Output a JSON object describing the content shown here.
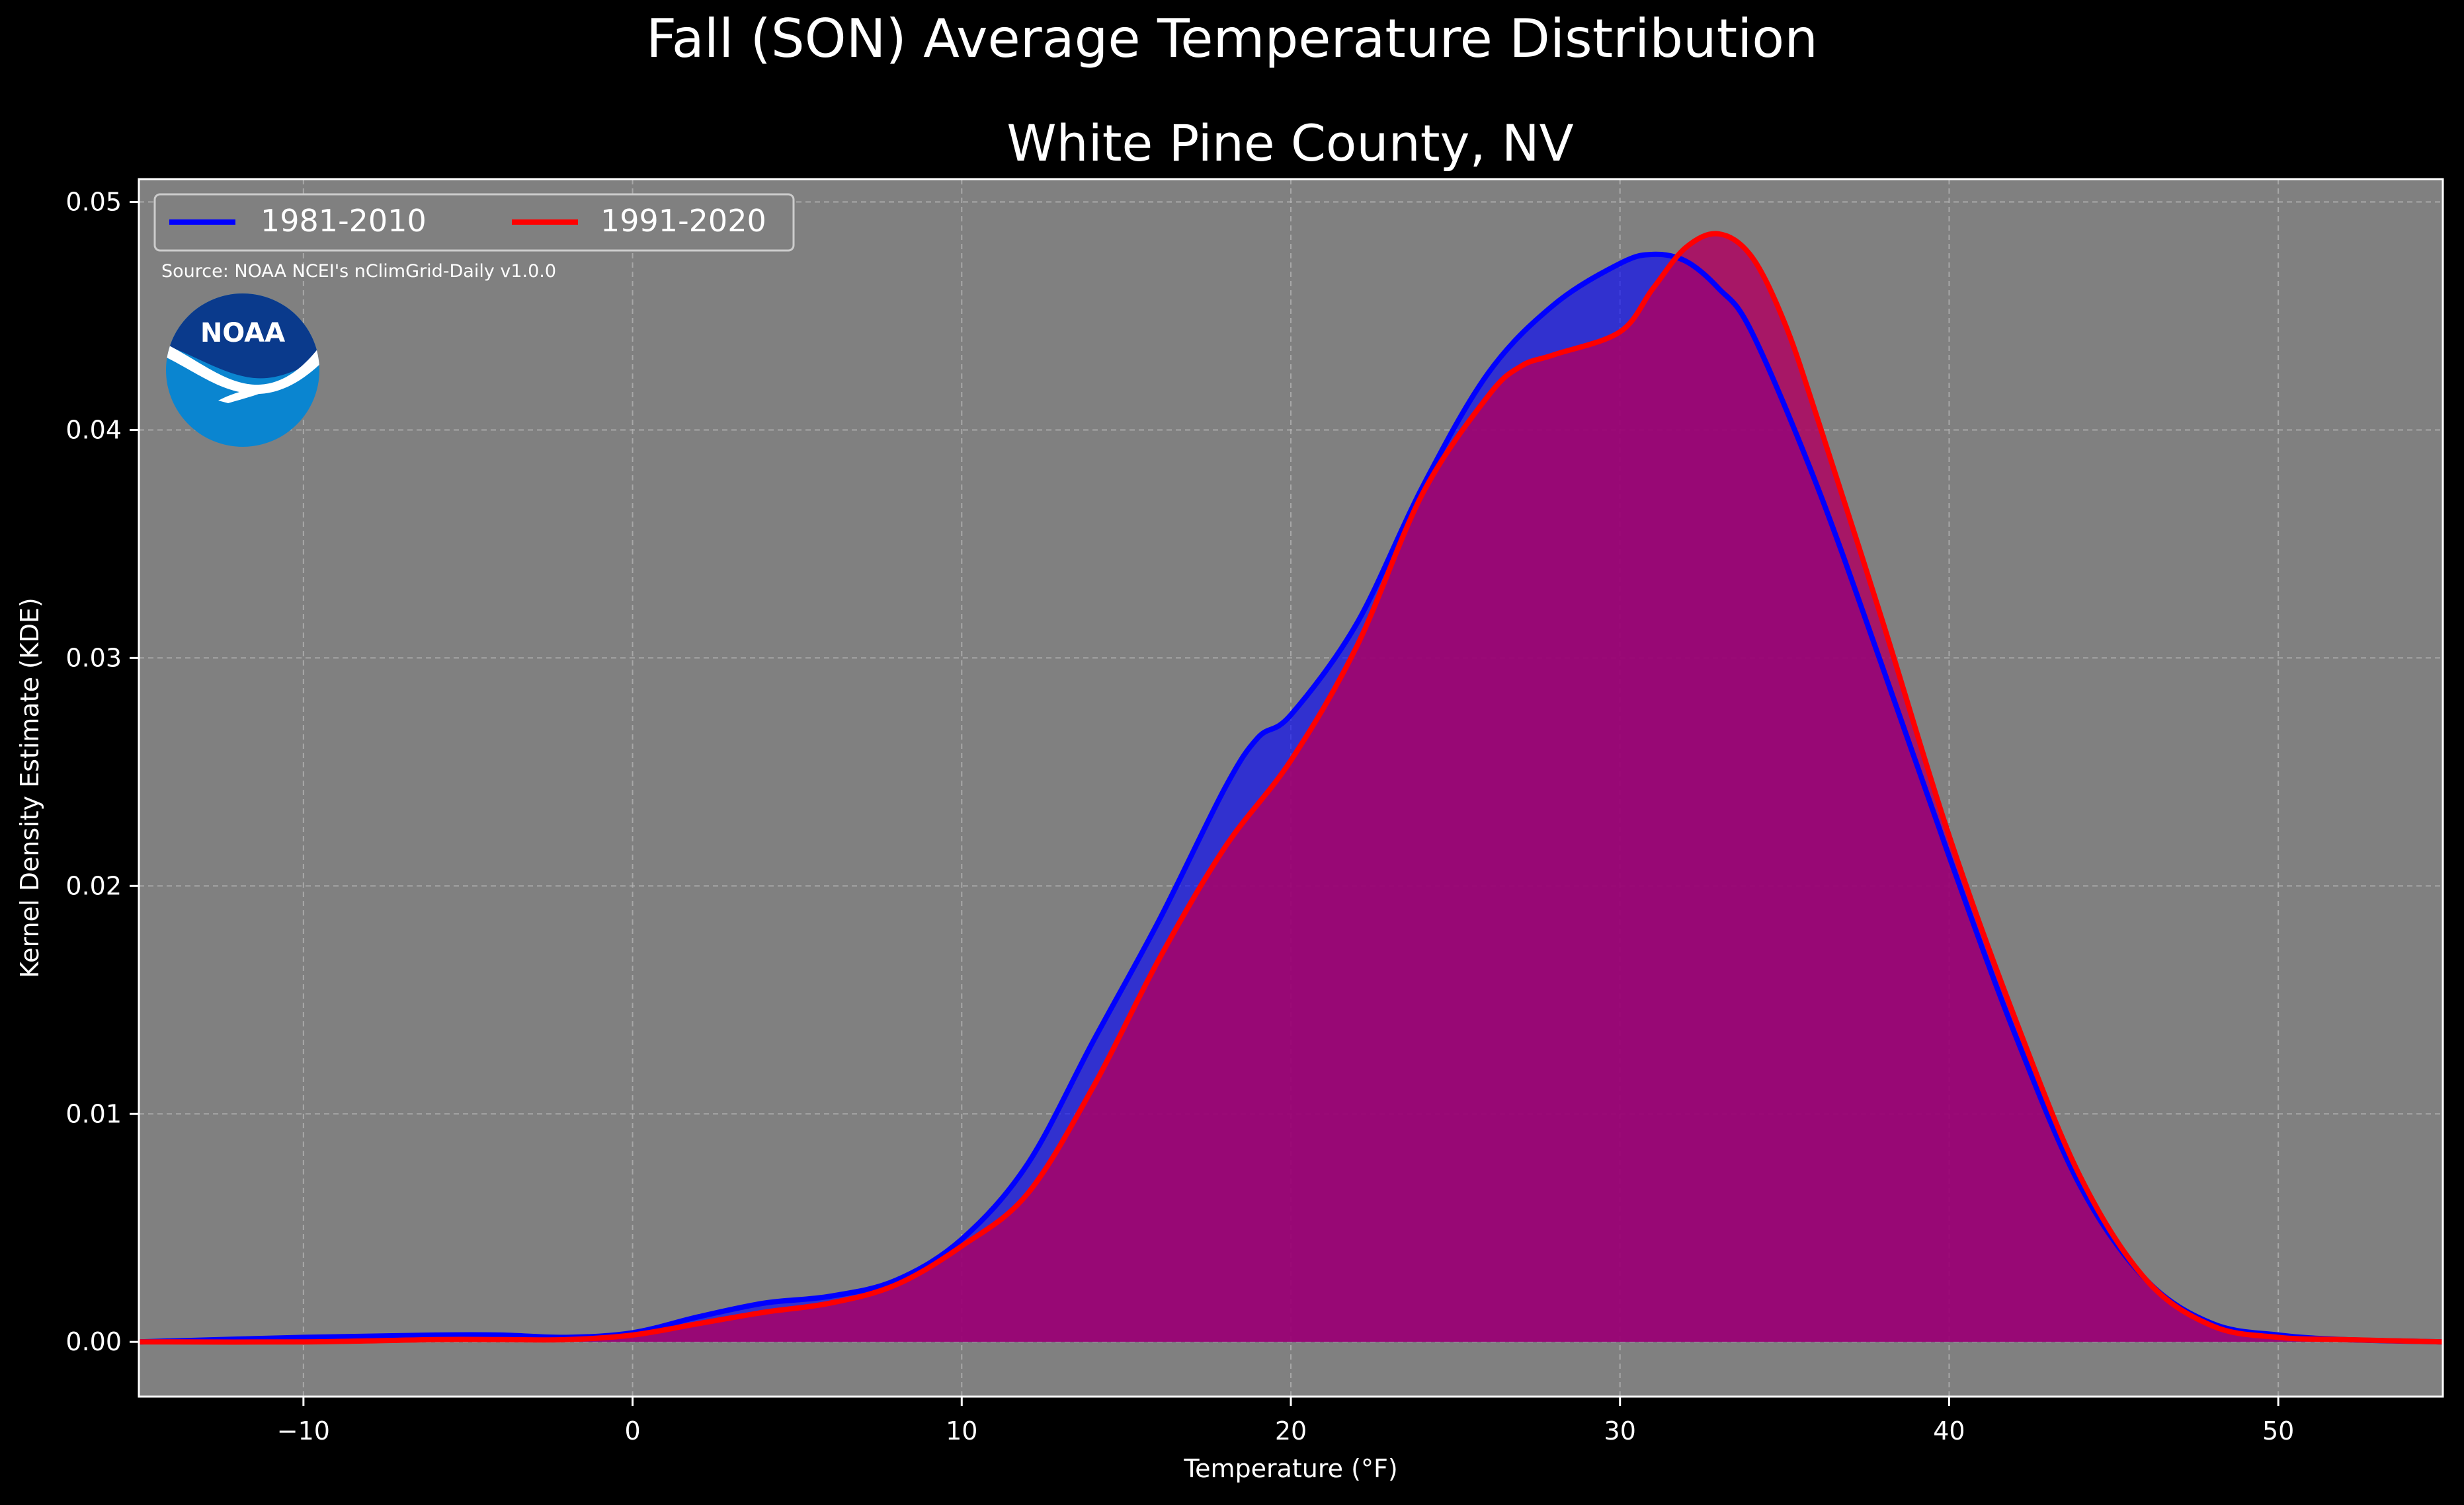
{
  "figure": {
    "title": "Fall (SON) Average Temperature Distribution",
    "subtitle": "White Pine County, NV",
    "source_note": "Source: NOAA NCEI's nClimGrid-Daily v1.0.0",
    "logo_text": "NOAA"
  },
  "colors": {
    "background": "#000000",
    "plot_background": "#808080",
    "series_1981_2010": "#0000ff",
    "series_1991_2020": "#ff0000",
    "fill_1981_2010": "#0000ff",
    "fill_1991_2020": "#b00060",
    "logo_top": "#0a3a8c",
    "logo_bottom": "#0a85d0"
  },
  "chart_data": {
    "type": "area",
    "title": "Fall (SON) Average Temperature Distribution",
    "subtitle": "White Pine County, NV",
    "xlabel": "Temperature ($^\\circ$F)",
    "xlabel_display": "Temperature (°F)",
    "ylabel": "Kernel Density Estimate (KDE)",
    "xlim": [
      -15,
      55
    ],
    "ylim": [
      -0.0024,
      0.051
    ],
    "xticks": [
      -10,
      0,
      10,
      20,
      30,
      40,
      50
    ],
    "xtick_labels": [
      "−10",
      "0",
      "10",
      "20",
      "30",
      "40",
      "50"
    ],
    "yticks": [
      0,
      0.01,
      0.02,
      0.03,
      0.04,
      0.05
    ],
    "ytick_labels": [
      "0.00",
      "0.01",
      "0.02",
      "0.03",
      "0.04",
      "0.05"
    ],
    "grid": true,
    "legend_placement": "top-left",
    "series": [
      {
        "name": "1981-2010",
        "color": "#0000ff",
        "x": [
          -15,
          -10,
          -6,
          -4,
          -2,
          0,
          2,
          4,
          6,
          8,
          10,
          12,
          14,
          16,
          18,
          19,
          20,
          22,
          24,
          26,
          28,
          30,
          31,
          32,
          33,
          34,
          36,
          38,
          40,
          42,
          44,
          46,
          48,
          50,
          52,
          55
        ],
        "y": [
          0.0,
          0.0002,
          0.0003,
          0.0003,
          0.0002,
          0.0004,
          0.0011,
          0.0017,
          0.002,
          0.0027,
          0.0045,
          0.0078,
          0.0132,
          0.0185,
          0.0243,
          0.0265,
          0.0275,
          0.0315,
          0.0375,
          0.0425,
          0.0455,
          0.0473,
          0.0477,
          0.0474,
          0.0462,
          0.0443,
          0.0375,
          0.0295,
          0.0213,
          0.0135,
          0.0068,
          0.0027,
          0.0008,
          0.0003,
          0.0001,
          0.0
        ]
      },
      {
        "name": "1991-2020",
        "color": "#ff0000",
        "x": [
          -15,
          -10,
          -6,
          -4,
          -2,
          0,
          2,
          4,
          6,
          8,
          10,
          12,
          14,
          16,
          18,
          20,
          22,
          24,
          26,
          27,
          28,
          30,
          31,
          32,
          33,
          34,
          35,
          36,
          38,
          40,
          42,
          44,
          46,
          48,
          50,
          52,
          55
        ],
        "y": [
          0.0,
          0.0,
          0.0001,
          0.0001,
          0.0001,
          0.0003,
          0.0008,
          0.0013,
          0.0017,
          0.0025,
          0.0042,
          0.0065,
          0.0112,
          0.0168,
          0.0217,
          0.0255,
          0.0305,
          0.0372,
          0.0415,
          0.0428,
          0.0433,
          0.0443,
          0.0462,
          0.048,
          0.0486,
          0.0476,
          0.0447,
          0.0405,
          0.0315,
          0.0222,
          0.0142,
          0.0072,
          0.0027,
          0.0007,
          0.0002,
          0.0001,
          0.0
        ]
      }
    ]
  }
}
